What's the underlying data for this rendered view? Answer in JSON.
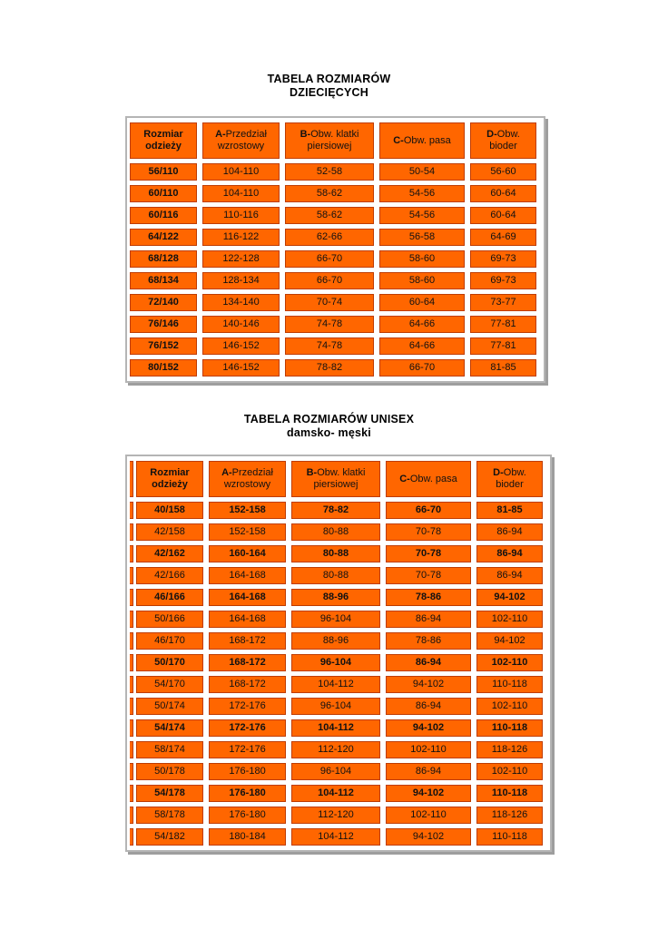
{
  "colors": {
    "cell_fill": "#ff6600",
    "cell_border": "#bf3c00",
    "container_border": "#b5b5b5",
    "container_shadow": "#9e9e9e",
    "page_background": "#ffffff",
    "text": "#111111"
  },
  "tables": [
    {
      "title_lines": [
        "TABELA ROZMIARÓW",
        "DZIECIĘCYCH"
      ],
      "headers": [
        {
          "bold": "Rozmiar odzieży",
          "rest": ""
        },
        {
          "bold": "A-",
          "rest": "Przedział wzrostowy"
        },
        {
          "bold": "B-",
          "rest": "Obw. klatki piersiowej"
        },
        {
          "bold": "C-",
          "rest": "Obw. pasa"
        },
        {
          "bold": "D-",
          "rest": "Obw. bioder"
        }
      ],
      "first_col_bold": true,
      "left_sliver": false,
      "rows": [
        {
          "cells": [
            "56/110",
            "104-110",
            "52-58",
            "50-54",
            "56-60"
          ],
          "bold": false
        },
        {
          "cells": [
            "60/110",
            "104-110",
            "58-62",
            "54-56",
            "60-64"
          ],
          "bold": false
        },
        {
          "cells": [
            "60/116",
            "110-116",
            "58-62",
            "54-56",
            "60-64"
          ],
          "bold": false
        },
        {
          "cells": [
            "64/122",
            "116-122",
            "62-66",
            "56-58",
            "64-69"
          ],
          "bold": false
        },
        {
          "cells": [
            "68/128",
            "122-128",
            "66-70",
            "58-60",
            "69-73"
          ],
          "bold": false
        },
        {
          "cells": [
            "68/134",
            "128-134",
            "66-70",
            "58-60",
            "69-73"
          ],
          "bold": false
        },
        {
          "cells": [
            "72/140",
            "134-140",
            "70-74",
            "60-64",
            "73-77"
          ],
          "bold": false
        },
        {
          "cells": [
            "76/146",
            "140-146",
            "74-78",
            "64-66",
            "77-81"
          ],
          "bold": false
        },
        {
          "cells": [
            "76/152",
            "146-152",
            "74-78",
            "64-66",
            "77-81"
          ],
          "bold": false
        },
        {
          "cells": [
            "80/152",
            "146-152",
            "78-82",
            "66-70",
            "81-85"
          ],
          "bold": false
        }
      ]
    },
    {
      "title_lines": [
        "TABELA ROZMIARÓW UNISEX",
        "damsko- męski"
      ],
      "headers": [
        {
          "bold": "Rozmiar odzieży",
          "rest": ""
        },
        {
          "bold": "A-",
          "rest": "Przedział wzrostowy"
        },
        {
          "bold": "B-",
          "rest": "Obw. klatki piersiowej"
        },
        {
          "bold": "C-",
          "rest": "Obw. pasa"
        },
        {
          "bold": "D-",
          "rest": "Obw. bioder"
        }
      ],
      "first_col_bold": false,
      "left_sliver": true,
      "rows": [
        {
          "cells": [
            "40/158",
            "152-158",
            "78-82",
            "66-70",
            "81-85"
          ],
          "bold": true
        },
        {
          "cells": [
            "42/158",
            "152-158",
            "80-88",
            "70-78",
            "86-94"
          ],
          "bold": false
        },
        {
          "cells": [
            "42/162",
            "160-164",
            "80-88",
            "70-78",
            "86-94"
          ],
          "bold": true
        },
        {
          "cells": [
            "42/166",
            "164-168",
            "80-88",
            "70-78",
            "86-94"
          ],
          "bold": false
        },
        {
          "cells": [
            "46/166",
            "164-168",
            "88-96",
            "78-86",
            "94-102"
          ],
          "bold": true
        },
        {
          "cells": [
            "50/166",
            "164-168",
            "96-104",
            "86-94",
            "102-110"
          ],
          "bold": false
        },
        {
          "cells": [
            "46/170",
            "168-172",
            "88-96",
            "78-86",
            "94-102"
          ],
          "bold": false
        },
        {
          "cells": [
            "50/170",
            "168-172",
            "96-104",
            "86-94",
            "102-110"
          ],
          "bold": true
        },
        {
          "cells": [
            "54/170",
            "168-172",
            "104-112",
            "94-102",
            "110-118"
          ],
          "bold": false
        },
        {
          "cells": [
            "50/174",
            "172-176",
            "96-104",
            "86-94",
            "102-110"
          ],
          "bold": false
        },
        {
          "cells": [
            "54/174",
            "172-176",
            "104-112",
            "94-102",
            "110-118"
          ],
          "bold": true
        },
        {
          "cells": [
            "58/174",
            "172-176",
            "112-120",
            "102-110",
            "118-126"
          ],
          "bold": false
        },
        {
          "cells": [
            "50/178",
            "176-180",
            "96-104",
            "86-94",
            "102-110"
          ],
          "bold": false
        },
        {
          "cells": [
            "54/178",
            "176-180",
            "104-112",
            "94-102",
            "110-118"
          ],
          "bold": true
        },
        {
          "cells": [
            "58/178",
            "176-180",
            "112-120",
            "102-110",
            "118-126"
          ],
          "bold": false
        },
        {
          "cells": [
            "54/182",
            "180-184",
            "104-112",
            "94-102",
            "110-118"
          ],
          "bold": false
        }
      ]
    }
  ]
}
